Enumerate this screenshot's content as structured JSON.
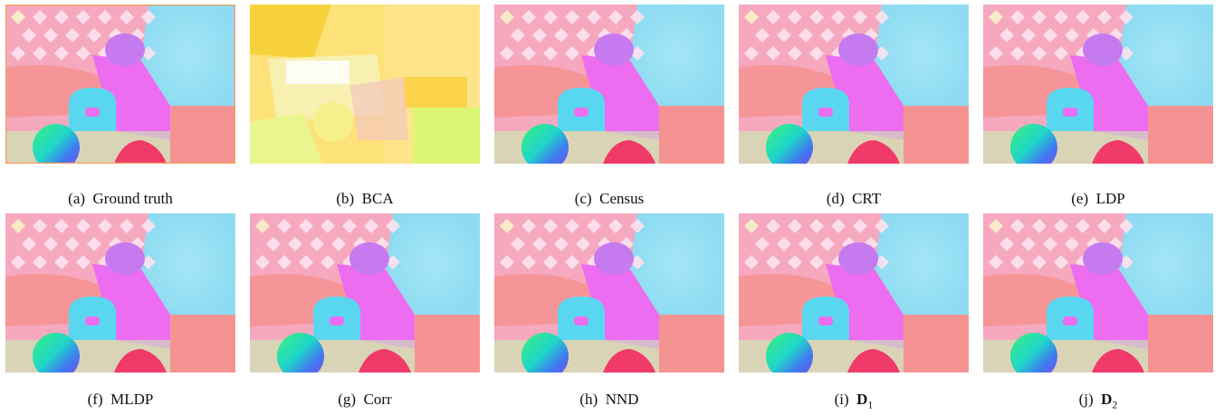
{
  "figure": {
    "panels": [
      {
        "label": "(a)",
        "name": "Ground truth",
        "variant": "gt"
      },
      {
        "label": "(b)",
        "name": "BCA",
        "variant": "bca"
      },
      {
        "label": "(c)",
        "name": "Census",
        "variant": "flow"
      },
      {
        "label": "(d)",
        "name": "CRT",
        "variant": "flow"
      },
      {
        "label": "(e)",
        "name": "LDP",
        "variant": "flow"
      },
      {
        "label": "(f)",
        "name": "MLDP",
        "variant": "flow"
      },
      {
        "label": "(g)",
        "name": "Corr",
        "variant": "flow"
      },
      {
        "label": "(h)",
        "name": "NND",
        "variant": "flow"
      },
      {
        "label": "(i)",
        "name": "D",
        "subscript": "1",
        "variant": "flow"
      },
      {
        "label": "(j)",
        "name": "D",
        "subscript": "2",
        "variant": "flow"
      }
    ]
  },
  "palette": {
    "pink_bg": "#f6a8bf",
    "diamond": "#fde2ef",
    "cyan_sky": "#8fdcf2",
    "magenta": "#ec6df0",
    "purple_ball": "#c67af0",
    "salmon": "#f58f8a",
    "cyan_d": "#5ad7f0",
    "red_blob": "#f03a6a",
    "bca_yellow": "#fde27a",
    "bca_lime": "#dcf573"
  }
}
